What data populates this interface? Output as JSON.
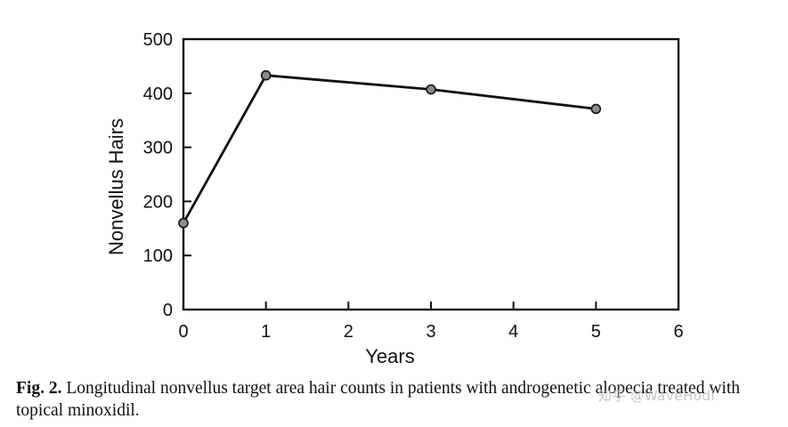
{
  "chart_data": {
    "type": "line",
    "title": "",
    "xlabel": "Years",
    "ylabel": "Nonvellus Hairs",
    "xlim": [
      0,
      6
    ],
    "ylim": [
      0,
      500
    ],
    "xticks": [
      0,
      1,
      2,
      3,
      4,
      5,
      6
    ],
    "yticks": [
      0,
      100,
      200,
      300,
      400,
      500
    ],
    "grid": false,
    "legend": "none",
    "series": [
      {
        "x": [
          0,
          1,
          3,
          5
        ],
        "y": [
          160,
          433,
          407,
          371
        ]
      }
    ],
    "colors": {
      "line": "#111111",
      "marker_fill": "#8a8a8a",
      "axis": "#111111"
    }
  },
  "caption": {
    "label": "Fig. 2.",
    "text": " Longitudinal nonvellus target area hair counts in patients with androgenetic alopecia treated with topical minoxidil."
  },
  "watermark": {
    "text": "知乎 @WaveHodi"
  }
}
